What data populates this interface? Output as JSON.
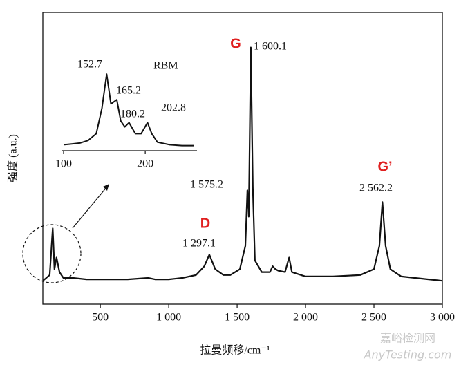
{
  "chart_data": [
    {
      "type": "line",
      "xlabel": "拉曼频移/cm⁻¹",
      "ylabel": "强度 (a.u.)",
      "x": [
        80,
        130,
        152,
        165,
        180,
        202,
        230,
        300,
        400,
        500,
        700,
        850,
        900,
        1000,
        1100,
        1200,
        1260,
        1297,
        1340,
        1400,
        1450,
        1520,
        1560,
        1575,
        1585,
        1600,
        1615,
        1630,
        1680,
        1740,
        1760,
        1780,
        1800,
        1850,
        1880,
        1900,
        2000,
        2200,
        2400,
        2500,
        2540,
        2562,
        2585,
        2620,
        2700,
        2900,
        3000
      ],
      "y": [
        8,
        10,
        26,
        12,
        16,
        11,
        9,
        9,
        8.5,
        8.5,
        8.5,
        9,
        8.5,
        8.5,
        9,
        10,
        13,
        17,
        12,
        10,
        10,
        12,
        20,
        39,
        30,
        88,
        40,
        15,
        11,
        11,
        13,
        12,
        11.5,
        11,
        16,
        11,
        9.5,
        9.5,
        10,
        12,
        20,
        35,
        20,
        12,
        9.5,
        8.5,
        8
      ],
      "color": "#111111",
      "xlim": [
        80,
        3000
      ],
      "ylim": [
        0,
        100
      ],
      "xticks": [
        500,
        {
          "value": 1000,
          "label": "1 000"
        },
        {
          "value": 1500,
          "label": "1 500"
        },
        {
          "value": 2000,
          "label": "2 000"
        },
        {
          "value": 2500,
          "label": "2 500"
        },
        {
          "value": 3000,
          "label": "3 000"
        }
      ],
      "annotations": [
        {
          "text": "G",
          "color": "#e02020"
        },
        {
          "text": "1 600.1"
        },
        {
          "text": "1 575.2"
        },
        {
          "text": "D",
          "color": "#e02020"
        },
        {
          "text": "1 297.1"
        },
        {
          "text": "G’",
          "color": "#e02020"
        },
        {
          "text": "2 562.2"
        }
      ]
    },
    {
      "type": "line",
      "x": [
        100,
        110,
        120,
        130,
        140,
        147,
        152.7,
        158,
        165.2,
        170,
        175,
        180.2,
        188,
        195,
        202.8,
        208,
        215,
        230,
        245,
        260
      ],
      "y": [
        7,
        8,
        9,
        12,
        20,
        50,
        90,
        55,
        60,
        35,
        28,
        33,
        20,
        20,
        33,
        20,
        10,
        7,
        6,
        6
      ],
      "color": "#111111",
      "xlim": [
        100,
        260
      ],
      "ylim": [
        0,
        100
      ],
      "xticks": [
        100,
        200
      ],
      "annotations": [
        {
          "text": "152.7"
        },
        {
          "text": "165.2"
        },
        {
          "text": "180.2"
        },
        {
          "text": "202.8"
        },
        {
          "text": "RBM"
        }
      ]
    }
  ],
  "watermark": {
    "title": "嘉峪检测网",
    "url": "AnyTesting.com"
  }
}
